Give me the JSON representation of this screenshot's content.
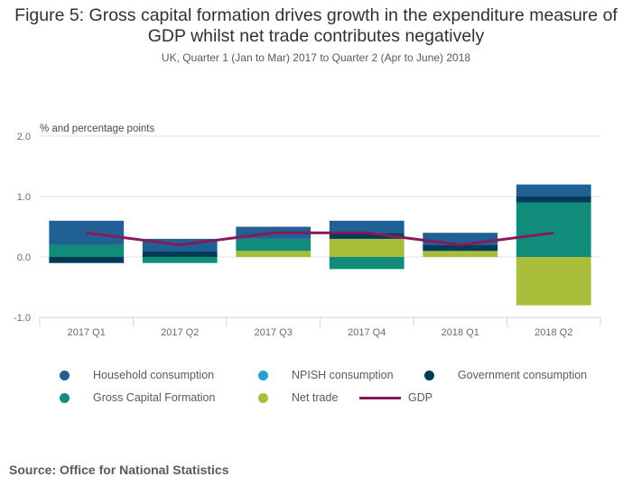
{
  "title": "Figure 5: Gross capital formation drives growth in the expenditure measure of GDP whilst net trade contributes negatively",
  "subtitle": "UK, Quarter 1 (Jan to Mar) 2017 to Quarter 2 (Apr to June) 2018",
  "source": "Source: Office for National Statistics",
  "chart_data": {
    "type": "bar",
    "stacked": true,
    "title": "Figure 5: Gross capital formation drives growth in the expenditure measure of GDP whilst net trade contributes negatively",
    "subtitle": "UK, Quarter 1 (Jan to Mar) 2017 to Quarter 2 (Apr to June) 2018",
    "xlabel": "",
    "ylabel": "% and percentage points",
    "ylim": [
      -1.0,
      2.0
    ],
    "yticks": [
      "2.0",
      "1.0",
      "0.0",
      "-1.0"
    ],
    "ytick_values": [
      2.0,
      1.0,
      0.0,
      -1.0
    ],
    "grid": true,
    "legend_position": "bottom",
    "categories": [
      "2017 Q1",
      "2017 Q2",
      "2017 Q3",
      "2017 Q4",
      "2018 Q1",
      "2018 Q2"
    ],
    "series": [
      {
        "name": "Household consumption",
        "color": "#206095",
        "type": "bar",
        "values": [
          0.4,
          0.2,
          0.2,
          0.2,
          0.2,
          0.2
        ]
      },
      {
        "name": "NPISH consumption",
        "color": "#27a0cc",
        "type": "bar",
        "values": [
          0.0,
          0.0,
          0.0,
          0.0,
          0.0,
          0.0
        ]
      },
      {
        "name": "Government consumption",
        "color": "#003c57",
        "type": "bar",
        "values": [
          -0.1,
          0.1,
          0.0,
          0.1,
          0.1,
          0.1
        ]
      },
      {
        "name": "Gross Capital Formation",
        "color": "#118c7b",
        "type": "bar",
        "values": [
          0.2,
          -0.1,
          0.2,
          -0.2,
          0.0,
          0.9
        ]
      },
      {
        "name": "Net trade",
        "color": "#a8bd3a",
        "type": "bar",
        "values": [
          0.0,
          0.0,
          0.1,
          0.3,
          0.1,
          -0.8
        ]
      },
      {
        "name": "GDP",
        "color": "#871a5b",
        "type": "line",
        "values": [
          0.4,
          0.2,
          0.4,
          0.4,
          0.2,
          0.4
        ]
      }
    ],
    "stack_order": [
      "Net trade",
      "Gross Capital Formation",
      "Government consumption",
      "NPISH consumption",
      "Household consumption"
    ]
  },
  "legend": [
    {
      "label": "Household consumption",
      "color": "#206095",
      "kind": "dot"
    },
    {
      "label": "NPISH consumption",
      "color": "#27a0cc",
      "kind": "dot"
    },
    {
      "label": "Government consumption",
      "color": "#003c57",
      "kind": "dot"
    },
    {
      "label": "Gross Capital Formation",
      "color": "#118c7b",
      "kind": "dot"
    },
    {
      "label": "Net trade",
      "color": "#a8bd3a",
      "kind": "dot"
    },
    {
      "label": "GDP",
      "color": "#871a5b",
      "kind": "line"
    }
  ]
}
